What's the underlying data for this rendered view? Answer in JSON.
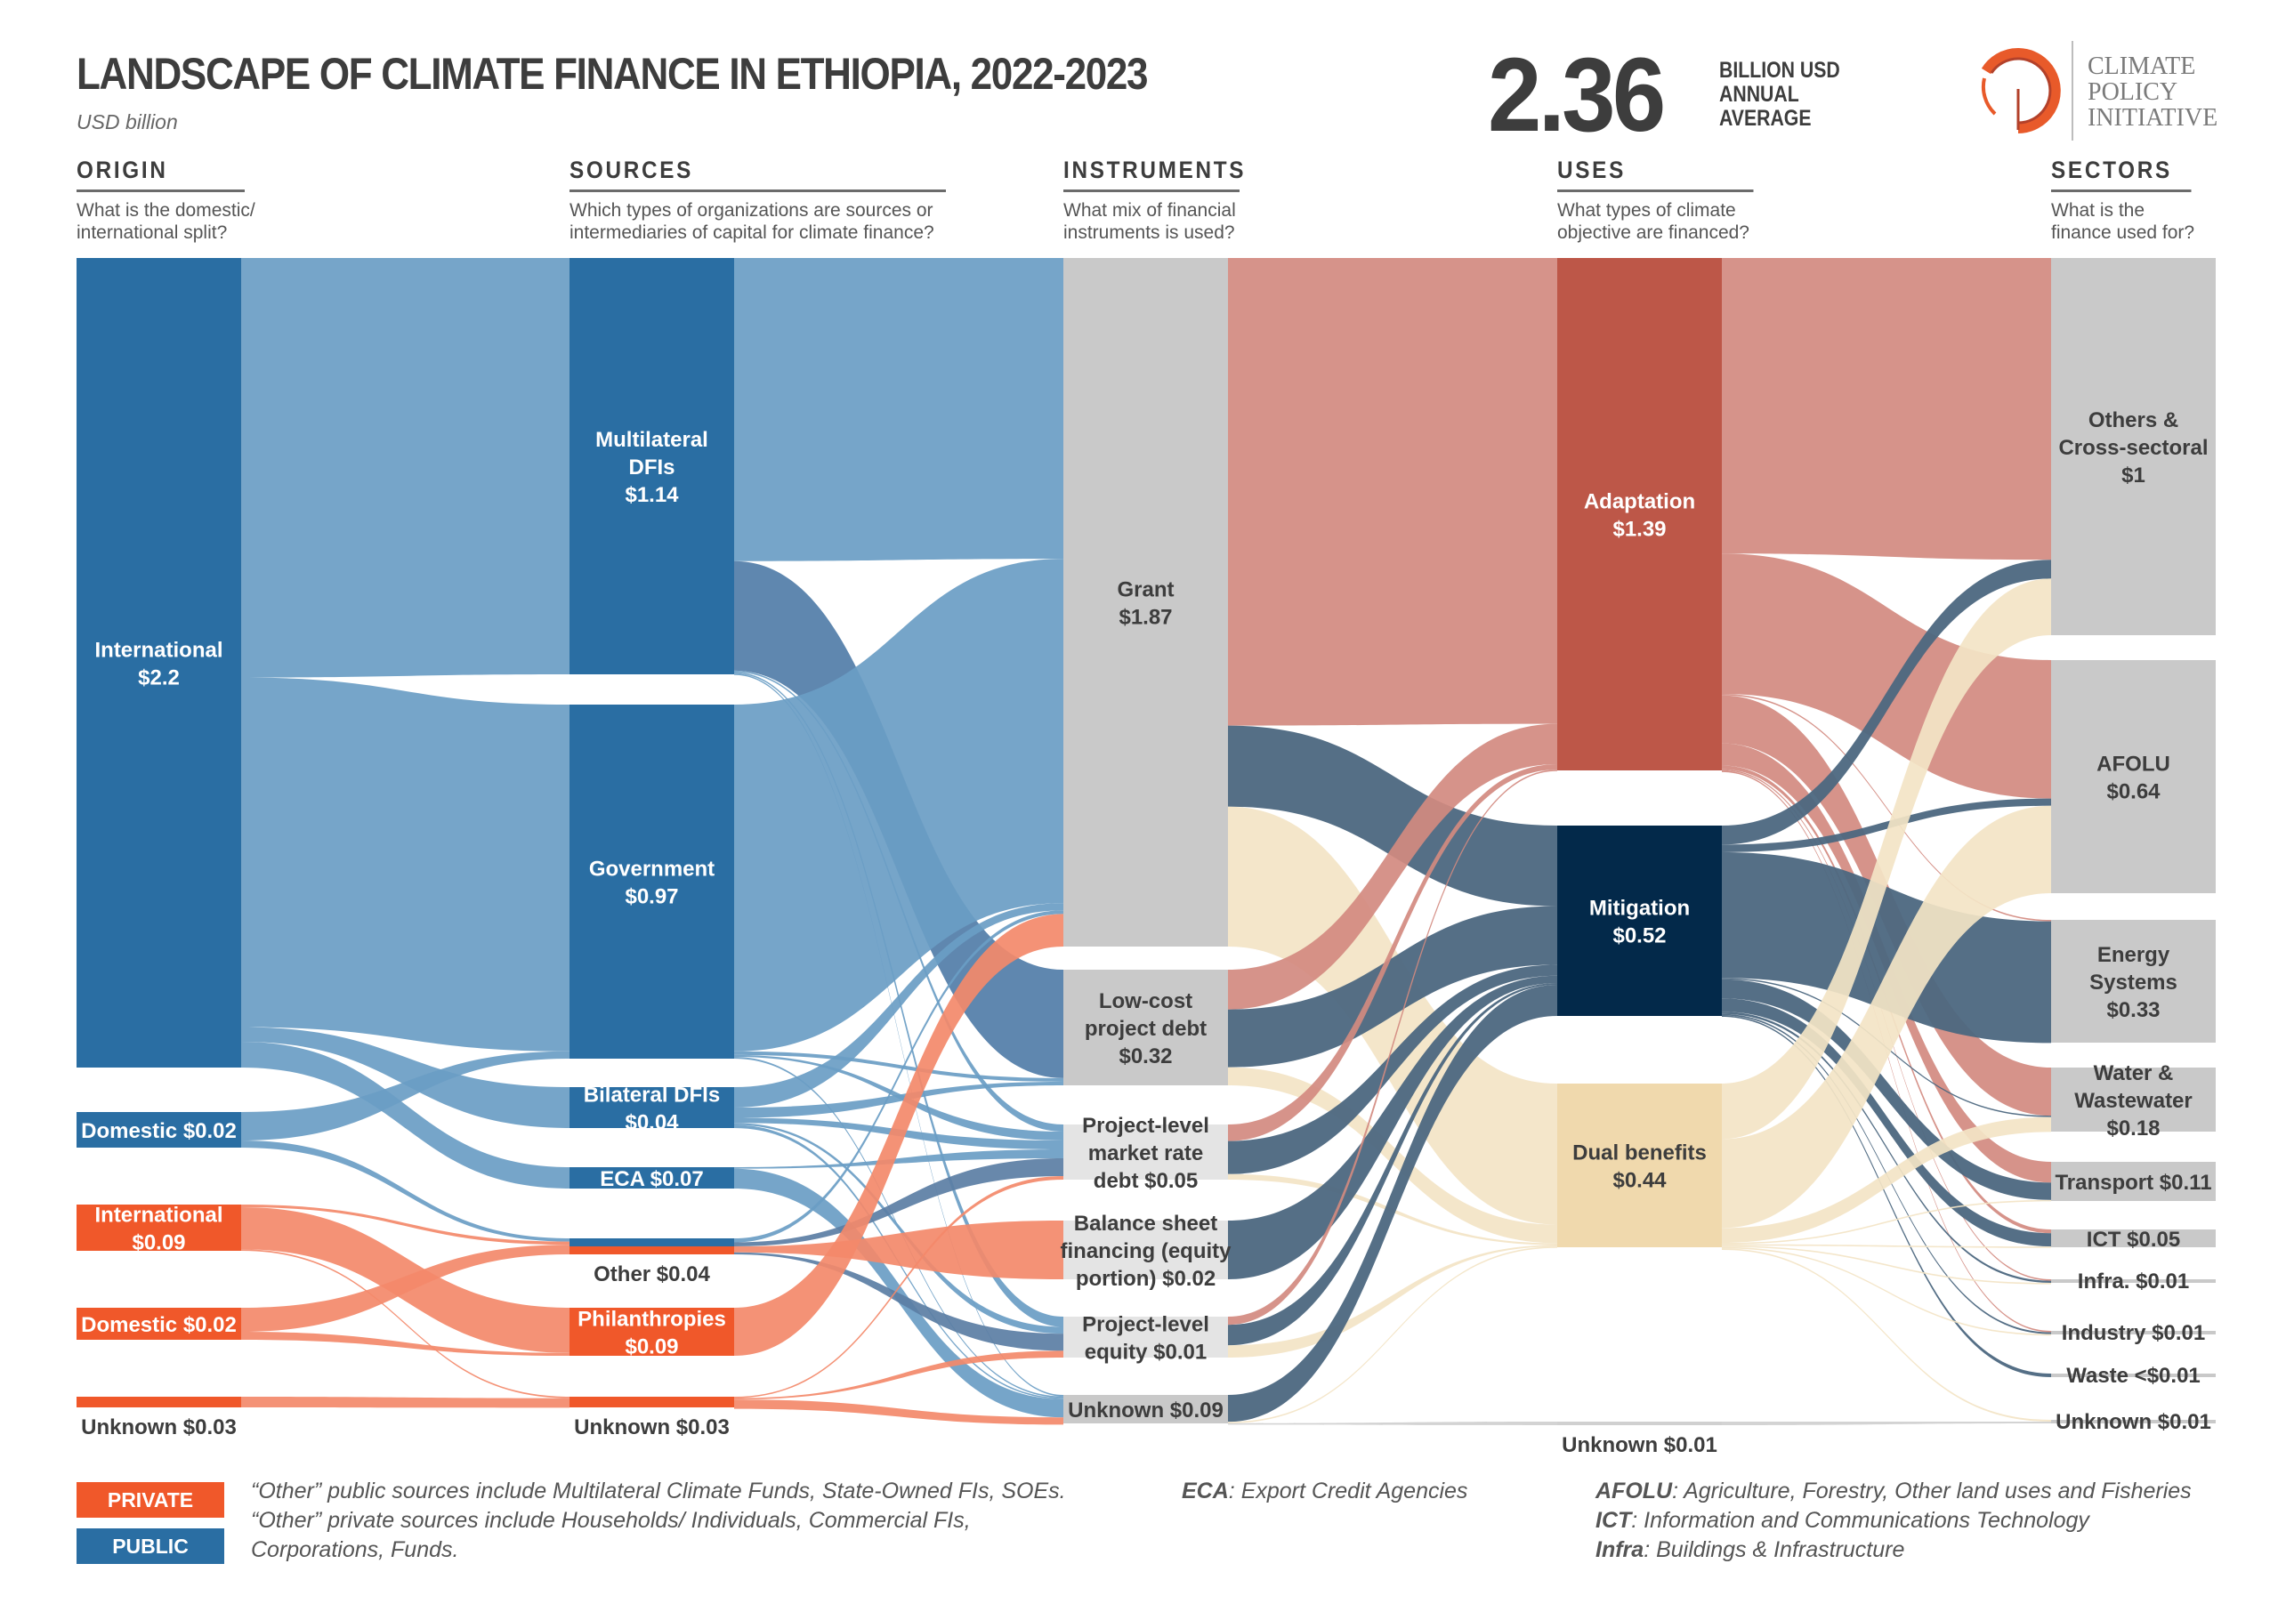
{
  "header": {
    "title": "LANDSCAPE OF CLIMATE FINANCE IN ETHIOPIA, 2022-2023",
    "subtitle": "USD billion",
    "total_value": "2.36",
    "total_label_1": "BILLION USD",
    "total_label_2": "ANNUAL",
    "total_label_3": "AVERAGE",
    "logo_line_1": "CLIMATE",
    "logo_line_2": "POLICY",
    "logo_line_3": "INITIATIVE"
  },
  "columns": [
    {
      "heading": "ORIGIN",
      "question_1": "What is the domestic/",
      "question_2": "international split?"
    },
    {
      "heading": "SOURCES",
      "question_1": "Which types of organizations are sources or",
      "question_2": "intermediaries of capital for climate finance?"
    },
    {
      "heading": "INSTRUMENTS",
      "question_1": "What mix of financial",
      "question_2": "instruments is used?"
    },
    {
      "heading": "USES",
      "question_1": "What types of climate",
      "question_2": "objective are financed?"
    },
    {
      "heading": "SECTORS",
      "question_1": "What is the",
      "question_2": "finance used for?"
    }
  ],
  "colors": {
    "public": "#2a6ea3",
    "public_flow": "#6a9dc4",
    "private": "#f0582a",
    "private_flow": "#f3896a",
    "instrument": "#c9c9c9",
    "instrument_light": "#e4e4e4",
    "adaptation": "#bd5748",
    "adaptation_flow": "#d28a80",
    "mitigation": "#03294a",
    "mitigation_flow": "#4c6780",
    "dual": "#f0d9ad",
    "dual_flow": "#f3e4c5",
    "sector": "#c9c9c9"
  },
  "legend": {
    "private_label": "PRIVATE",
    "public_label": "PUBLIC",
    "note_1": "“Other” public sources include Multilateral Climate Funds, State-Owned FIs, SOEs.",
    "note_2": "“Other” private sources include Households/ Individuals, Commercial FIs,",
    "note_3": "Corporations, Funds.",
    "eca_abbr": "ECA",
    "eca_def": ": Export Credit Agencies",
    "afolu_abbr": "AFOLU",
    "afolu_def": ": Agriculture, Forestry, Other land uses and Fisheries",
    "ict_abbr": "ICT",
    "ict_def": ": Information and Communications Technology",
    "infra_abbr": "Infra",
    "infra_def": ": Buildings & Infrastructure"
  },
  "chart_data": {
    "type": "sankey",
    "title": "Landscape of Climate Finance in Ethiopia, 2022-2023",
    "unit": "USD billion",
    "total": 2.36,
    "stages": [
      "Origin",
      "Sources",
      "Instruments",
      "Uses",
      "Sectors"
    ],
    "nodes": [
      {
        "id": "o_int_pub",
        "stage": 0,
        "label_1": "International",
        "label_2": "$2.2",
        "value": 2.2,
        "type": "public"
      },
      {
        "id": "o_dom_pub",
        "stage": 0,
        "label_1": "Domestic $0.02",
        "label_2": "",
        "value": 0.02,
        "type": "public"
      },
      {
        "id": "o_int_pri",
        "stage": 0,
        "label_1": "International",
        "label_2": "$0.09",
        "value": 0.09,
        "type": "private"
      },
      {
        "id": "o_dom_pri",
        "stage": 0,
        "label_1": "Domestic $0.02",
        "label_2": "",
        "value": 0.02,
        "type": "private"
      },
      {
        "id": "o_unk_pri",
        "stage": 0,
        "label_1": "Unknown $0.03",
        "label_2": "",
        "value": 0.03,
        "type": "private"
      },
      {
        "id": "s_mdfi",
        "stage": 1,
        "label_1": "Multilateral",
        "label_2": "DFIs",
        "label_3": "$1.14",
        "value": 1.14,
        "type": "public"
      },
      {
        "id": "s_gov",
        "stage": 1,
        "label_1": "Government",
        "label_2": "$0.97",
        "value": 0.97,
        "type": "public"
      },
      {
        "id": "s_bdfi",
        "stage": 1,
        "label_1": "Bilateral DFIs",
        "label_2": "$0.04",
        "value": 0.04,
        "type": "public"
      },
      {
        "id": "s_eca",
        "stage": 1,
        "label_1": "ECA $0.07",
        "label_2": "",
        "value": 0.07,
        "type": "public"
      },
      {
        "id": "s_other",
        "stage": 1,
        "label_1": "Other $0.04",
        "label_2": "",
        "value": 0.04,
        "type": "mixed"
      },
      {
        "id": "s_phil",
        "stage": 1,
        "label_1": "Philanthropies",
        "label_2": "$0.09",
        "value": 0.09,
        "type": "private"
      },
      {
        "id": "s_unk",
        "stage": 1,
        "label_1": "Unknown $0.03",
        "label_2": "",
        "value": 0.03,
        "type": "private"
      },
      {
        "id": "i_grant",
        "stage": 2,
        "label_1": "Grant",
        "label_2": "$1.87",
        "value": 1.87
      },
      {
        "id": "i_lcd",
        "stage": 2,
        "label_1": "Low-cost",
        "label_2": "project debt",
        "label_3": "$0.32",
        "value": 0.32
      },
      {
        "id": "i_mrd",
        "stage": 2,
        "label_1": "Project-level",
        "label_2": "market rate",
        "label_3": "debt $0.05",
        "value": 0.05
      },
      {
        "id": "i_bsf",
        "stage": 2,
        "label_1": "Balance sheet",
        "label_2": "financing (equity",
        "label_3": "portion) $0.02",
        "value": 0.02
      },
      {
        "id": "i_eq",
        "stage": 2,
        "label_1": "Project-level",
        "label_2": "equity $0.01",
        "value": 0.01
      },
      {
        "id": "i_unk",
        "stage": 2,
        "label_1": "Unknown $0.09",
        "label_2": "",
        "value": 0.09
      },
      {
        "id": "u_adapt",
        "stage": 3,
        "label_1": "Adaptation",
        "label_2": "$1.39",
        "value": 1.39
      },
      {
        "id": "u_mitig",
        "stage": 3,
        "label_1": "Mitigation",
        "label_2": "$0.52",
        "value": 0.52
      },
      {
        "id": "u_dual",
        "stage": 3,
        "label_1": "Dual benefits",
        "label_2": "$0.44",
        "value": 0.44
      },
      {
        "id": "u_unk",
        "stage": 3,
        "label_1": "Unknown $0.01",
        "label_2": "",
        "value": 0.01
      },
      {
        "id": "t_other",
        "stage": 4,
        "label_1": "Others &",
        "label_2": "Cross-sectoral",
        "label_3": "$1",
        "value": 1.0
      },
      {
        "id": "t_afolu",
        "stage": 4,
        "label_1": "AFOLU",
        "label_2": "$0.64",
        "value": 0.64
      },
      {
        "id": "t_energy",
        "stage": 4,
        "label_1": "Energy",
        "label_2": "Systems",
        "label_3": "$0.33",
        "value": 0.33
      },
      {
        "id": "t_water",
        "stage": 4,
        "label_1": "Water &",
        "label_2": "Wastewater",
        "label_3": "$0.18",
        "value": 0.18
      },
      {
        "id": "t_transport",
        "stage": 4,
        "label_1": "Transport $0.11",
        "label_2": "",
        "value": 0.11
      },
      {
        "id": "t_ict",
        "stage": 4,
        "label_1": "ICT $0.05",
        "label_2": "",
        "value": 0.05
      },
      {
        "id": "t_infra",
        "stage": 4,
        "label_1": "Infra. $0.01",
        "label_2": "",
        "value": 0.01
      },
      {
        "id": "t_industry",
        "stage": 4,
        "label_1": "Industry $0.01",
        "label_2": "",
        "value": 0.01
      },
      {
        "id": "t_waste",
        "stage": 4,
        "label_1": "Waste <$0.01",
        "label_2": "",
        "value": 0.004
      },
      {
        "id": "t_unk",
        "stage": 4,
        "label_1": "Unknown $0.01",
        "label_2": "",
        "value": 0.01
      }
    ],
    "links": [
      {
        "from": "o_int_pub",
        "to": "s_mdfi",
        "value": 1.14,
        "type": "public"
      },
      {
        "from": "o_int_pub",
        "to": "s_gov",
        "value": 0.95,
        "type": "public"
      },
      {
        "from": "o_int_pub",
        "to": "s_bdfi",
        "value": 0.04,
        "type": "public"
      },
      {
        "from": "o_int_pub",
        "to": "s_eca",
        "value": 0.07,
        "type": "public"
      },
      {
        "from": "o_dom_pub",
        "to": "s_gov",
        "value": 0.02,
        "type": "public"
      },
      {
        "from": "o_dom_pub",
        "to": "s_other",
        "value": 0.005,
        "type": "public"
      },
      {
        "from": "o_int_pri",
        "to": "s_phil",
        "value": 0.08,
        "type": "private"
      },
      {
        "from": "o_int_pri",
        "to": "s_other",
        "value": 0.005,
        "type": "private"
      },
      {
        "from": "o_int_pri",
        "to": "s_unk",
        "value": 0.003,
        "type": "private"
      },
      {
        "from": "o_dom_pri",
        "to": "s_other",
        "value": 0.015,
        "type": "private"
      },
      {
        "from": "o_dom_pri",
        "to": "s_phil",
        "value": 0.005,
        "type": "private"
      },
      {
        "from": "o_unk_pri",
        "to": "s_unk",
        "value": 0.027,
        "type": "private"
      },
      {
        "from": "s_mdfi",
        "to": "i_grant",
        "value": 0.83,
        "type": "public"
      },
      {
        "from": "s_mdfi",
        "to": "i_lcd",
        "value": 0.3,
        "type": "public_dark"
      },
      {
        "from": "s_mdfi",
        "to": "i_mrd",
        "value": 0.004,
        "type": "public"
      },
      {
        "from": "s_mdfi",
        "to": "i_eq",
        "value": 0.003,
        "type": "public"
      },
      {
        "from": "s_mdfi",
        "to": "i_unk",
        "value": 0.003,
        "type": "public"
      },
      {
        "from": "s_gov",
        "to": "i_grant",
        "value": 0.95,
        "type": "public"
      },
      {
        "from": "s_gov",
        "to": "i_lcd",
        "value": 0.01,
        "type": "public"
      },
      {
        "from": "s_gov",
        "to": "i_mrd",
        "value": 0.005,
        "type": "public"
      },
      {
        "from": "s_gov",
        "to": "i_unk",
        "value": 0.005,
        "type": "public"
      },
      {
        "from": "s_bdfi",
        "to": "i_grant",
        "value": 0.02,
        "type": "public"
      },
      {
        "from": "s_bdfi",
        "to": "i_lcd",
        "value": 0.01,
        "type": "public"
      },
      {
        "from": "s_bdfi",
        "to": "i_mrd",
        "value": 0.005,
        "type": "public"
      },
      {
        "from": "s_bdfi",
        "to": "i_eq",
        "value": 0.002,
        "type": "public"
      },
      {
        "from": "s_bdfi",
        "to": "i_unk",
        "value": 0.003,
        "type": "public"
      },
      {
        "from": "s_eca",
        "to": "i_mrd",
        "value": 0.005,
        "type": "public"
      },
      {
        "from": "s_eca",
        "to": "i_unk",
        "value": 0.065,
        "type": "public"
      },
      {
        "from": "s_other",
        "to": "i_grant",
        "value": 0.01,
        "type": "public"
      },
      {
        "from": "s_other",
        "to": "i_mrd",
        "value": 0.01,
        "type": "mixed"
      },
      {
        "from": "s_other",
        "to": "i_bsf",
        "value": 0.015,
        "type": "private"
      },
      {
        "from": "s_other",
        "to": "i_eq",
        "value": 0.005,
        "type": "mixed"
      },
      {
        "from": "s_phil",
        "to": "i_grant",
        "value": 0.09,
        "type": "private"
      },
      {
        "from": "s_unk",
        "to": "i_mrd",
        "value": 0.002,
        "type": "private"
      },
      {
        "from": "s_unk",
        "to": "i_eq",
        "value": 0.002,
        "type": "private"
      },
      {
        "from": "s_unk",
        "to": "i_unk",
        "value": 0.026,
        "type": "private"
      },
      {
        "from": "i_grant",
        "to": "u_adapt",
        "value": 1.27,
        "type": "adaptation"
      },
      {
        "from": "i_grant",
        "to": "u_mitig",
        "value": 0.22,
        "type": "mitigation"
      },
      {
        "from": "i_grant",
        "to": "u_dual",
        "value": 0.38,
        "type": "dual"
      },
      {
        "from": "i_lcd",
        "to": "u_adapt",
        "value": 0.11,
        "type": "adaptation"
      },
      {
        "from": "i_lcd",
        "to": "u_mitig",
        "value": 0.16,
        "type": "mitigation"
      },
      {
        "from": "i_lcd",
        "to": "u_dual",
        "value": 0.05,
        "type": "dual"
      },
      {
        "from": "i_mrd",
        "to": "u_adapt",
        "value": 0.015,
        "type": "adaptation"
      },
      {
        "from": "i_mrd",
        "to": "u_mitig",
        "value": 0.03,
        "type": "mitigation"
      },
      {
        "from": "i_mrd",
        "to": "u_dual",
        "value": 0.005,
        "type": "dual"
      },
      {
        "from": "i_bsf",
        "to": "u_mitig",
        "value": 0.02,
        "type": "mitigation"
      },
      {
        "from": "i_eq",
        "to": "u_adapt",
        "value": 0.002,
        "type": "adaptation"
      },
      {
        "from": "i_eq",
        "to": "u_mitig",
        "value": 0.005,
        "type": "mitigation"
      },
      {
        "from": "i_eq",
        "to": "u_dual",
        "value": 0.003,
        "type": "dual"
      },
      {
        "from": "i_unk",
        "to": "u_mitig",
        "value": 0.085,
        "type": "mitigation"
      },
      {
        "from": "i_unk",
        "to": "u_dual",
        "value": 0.003,
        "type": "dual"
      },
      {
        "from": "i_unk",
        "to": "u_unk",
        "value": 0.002,
        "type": "grey"
      },
      {
        "from": "u_adapt",
        "to": "t_other",
        "value": 0.8,
        "type": "adaptation"
      },
      {
        "from": "u_adapt",
        "to": "t_afolu",
        "value": 0.38,
        "type": "adaptation"
      },
      {
        "from": "u_adapt",
        "to": "t_energy",
        "value": 0.003,
        "type": "adaptation"
      },
      {
        "from": "u_adapt",
        "to": "t_water",
        "value": 0.13,
        "type": "adaptation"
      },
      {
        "from": "u_adapt",
        "to": "t_transport",
        "value": 0.06,
        "type": "adaptation"
      },
      {
        "from": "u_adapt",
        "to": "t_ict",
        "value": 0.01,
        "type": "adaptation"
      },
      {
        "from": "u_adapt",
        "to": "t_infra",
        "value": 0.002,
        "type": "adaptation"
      },
      {
        "from": "u_adapt",
        "to": "t_industry",
        "value": 0.002,
        "type": "adaptation"
      },
      {
        "from": "u_mitig",
        "to": "t_other",
        "value": 0.05,
        "type": "mitigation"
      },
      {
        "from": "u_mitig",
        "to": "t_afolu",
        "value": 0.02,
        "type": "mitigation"
      },
      {
        "from": "u_mitig",
        "to": "t_energy",
        "value": 0.33,
        "type": "mitigation"
      },
      {
        "from": "u_mitig",
        "to": "t_water",
        "value": 0.003,
        "type": "mitigation"
      },
      {
        "from": "u_mitig",
        "to": "t_transport",
        "value": 0.05,
        "type": "mitigation"
      },
      {
        "from": "u_mitig",
        "to": "t_ict",
        "value": 0.035,
        "type": "mitigation"
      },
      {
        "from": "u_mitig",
        "to": "t_infra",
        "value": 0.006,
        "type": "mitigation"
      },
      {
        "from": "u_mitig",
        "to": "t_industry",
        "value": 0.004,
        "type": "mitigation"
      },
      {
        "from": "u_mitig",
        "to": "t_waste",
        "value": 0.002,
        "type": "mitigation"
      },
      {
        "from": "u_dual",
        "to": "t_other",
        "value": 0.15,
        "type": "dual"
      },
      {
        "from": "u_dual",
        "to": "t_afolu",
        "value": 0.24,
        "type": "dual"
      },
      {
        "from": "u_dual",
        "to": "t_water",
        "value": 0.04,
        "type": "dual"
      },
      {
        "from": "u_dual",
        "to": "t_transport",
        "value": 0.003,
        "type": "dual"
      },
      {
        "from": "u_dual",
        "to": "t_ict",
        "value": 0.002,
        "type": "dual"
      },
      {
        "from": "u_dual",
        "to": "t_infra",
        "value": 0.002,
        "type": "dual"
      },
      {
        "from": "u_dual",
        "to": "t_industry",
        "value": 0.002,
        "type": "dual"
      },
      {
        "from": "u_dual",
        "to": "t_unk",
        "value": 0.003,
        "type": "dual"
      },
      {
        "from": "u_unk",
        "to": "t_unk",
        "value": 0.003,
        "type": "grey"
      }
    ]
  }
}
